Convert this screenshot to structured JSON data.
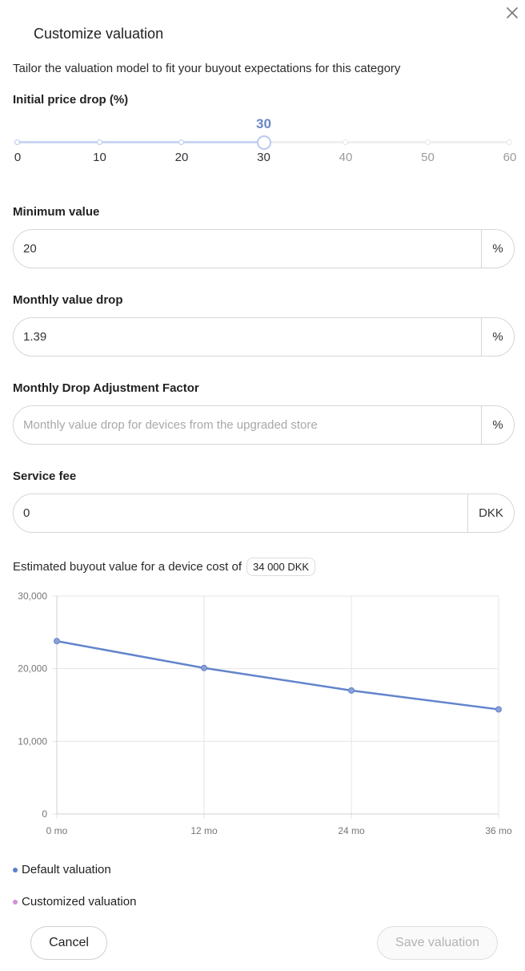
{
  "dialog": {
    "title": "Customize valuation",
    "subtitle": "Tailor the valuation model to fit your buyout expectations for this category"
  },
  "initial_price_drop": {
    "label": "Initial price drop (%)",
    "value": 30,
    "value_text": "30",
    "ticks": [
      "0",
      "10",
      "20",
      "30",
      "40",
      "50",
      "60"
    ],
    "min": 0,
    "max": 60
  },
  "minimum_value": {
    "label": "Minimum value",
    "value": "20",
    "suffix": "%"
  },
  "monthly_value_drop": {
    "label": "Monthly value drop",
    "value": "1.39",
    "suffix": "%"
  },
  "adjustment_factor": {
    "label": "Monthly Drop Adjustment Factor",
    "value": "",
    "placeholder": "Monthly value drop for devices from the upgraded store",
    "suffix": "%"
  },
  "service_fee": {
    "label": "Service fee",
    "value": "0",
    "suffix": "DKK"
  },
  "estimate": {
    "text": "Estimated buyout value for a device cost of",
    "device_cost": "34 000 DKK"
  },
  "chart_data": {
    "type": "line",
    "x": [
      "0 mo",
      "12 mo",
      "24 mo",
      "36 mo"
    ],
    "y_ticks": [
      "0",
      "10,000",
      "20,000",
      "30,000"
    ],
    "ylim": [
      0,
      30000
    ],
    "grid": true,
    "series": [
      {
        "name": "Default valuation",
        "values": [
          23800,
          20100,
          17000,
          14400
        ],
        "color": "#6384cc"
      }
    ]
  },
  "legend": [
    {
      "label": "Default valuation",
      "color": "#5b7ec9"
    },
    {
      "label": "Customized valuation",
      "color": "#d48fd6"
    }
  ],
  "actions": {
    "cancel": "Cancel",
    "save": "Save valuation"
  },
  "colors": {
    "accent": "#6a86c6",
    "slider_active": "#c9d6f2"
  }
}
